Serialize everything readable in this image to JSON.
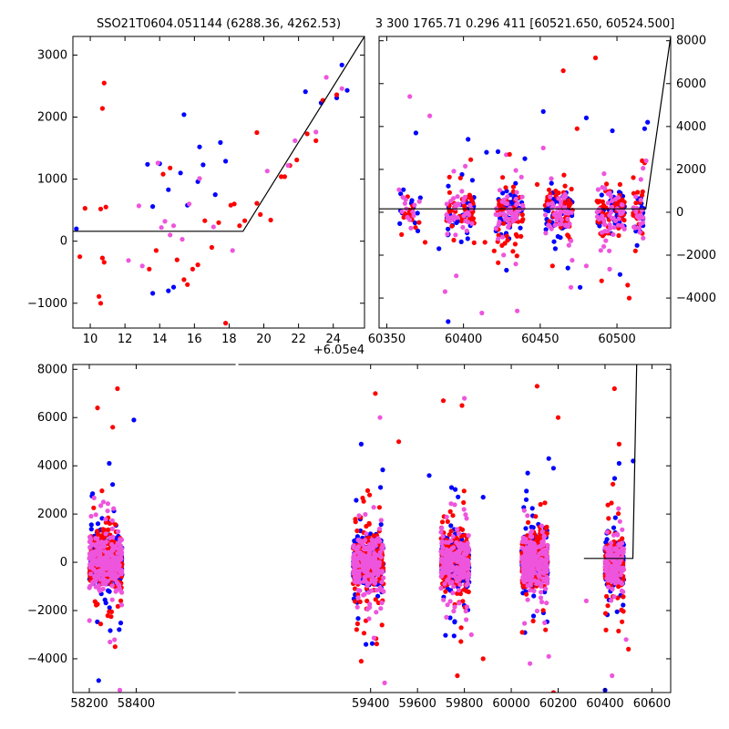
{
  "figure": {
    "title_left": "SSO21T0604.051144 (6288.36, 4262.53)",
    "title_right": "3 300 1765.71 0.296 411 [60521.650, 60524.500]",
    "offset_label": "+6.05e4"
  },
  "colors": {
    "blue": "#0000ff",
    "red": "#ff0000",
    "pink": "#ee55dd",
    "line": "#000000"
  },
  "chart_data": [
    {
      "id": "zoom",
      "type": "scatter",
      "xlim": [
        9,
        25.8
      ],
      "ylim": [
        -1400,
        3300
      ],
      "xticks": [
        10,
        12,
        14,
        16,
        18,
        20,
        22,
        24
      ],
      "yticks": [
        -1000,
        0,
        1000,
        2000,
        3000
      ],
      "model_line": [
        [
          9,
          160
        ],
        [
          18.8,
          160
        ],
        [
          25.8,
          3300
        ]
      ],
      "blue": [
        [
          9.2,
          200
        ],
        [
          13.3,
          1240
        ],
        [
          13.6,
          -840
        ],
        [
          14.0,
          1250
        ],
        [
          14.5,
          -800
        ],
        [
          14.8,
          -740
        ],
        [
          14.5,
          830
        ],
        [
          15.2,
          1100
        ],
        [
          15.4,
          2040
        ],
        [
          15.6,
          580
        ],
        [
          16.2,
          960
        ],
        [
          16.5,
          1230
        ],
        [
          17.2,
          750
        ],
        [
          17.5,
          1590
        ],
        [
          17.8,
          1290
        ],
        [
          22.4,
          2410
        ],
        [
          23.3,
          2230
        ],
        [
          24.5,
          2840
        ],
        [
          24.8,
          2430
        ],
        [
          24.2,
          2310
        ],
        [
          13.6,
          560
        ],
        [
          16.3,
          1520
        ]
      ],
      "red": [
        [
          9.4,
          -250
        ],
        [
          9.7,
          530
        ],
        [
          10.6,
          520
        ],
        [
          10.7,
          2140
        ],
        [
          10.8,
          2550
        ],
        [
          10.6,
          -1000
        ],
        [
          10.5,
          -890
        ],
        [
          10.8,
          -340
        ],
        [
          10.7,
          -270
        ],
        [
          10.9,
          550
        ],
        [
          13.4,
          -450
        ],
        [
          13.8,
          -150
        ],
        [
          14.2,
          1080
        ],
        [
          14.6,
          1180
        ],
        [
          15.0,
          -300
        ],
        [
          15.4,
          -620
        ],
        [
          15.6,
          -700
        ],
        [
          15.9,
          -450
        ],
        [
          16.2,
          -380
        ],
        [
          16.6,
          330
        ],
        [
          17.0,
          -100
        ],
        [
          17.4,
          300
        ],
        [
          17.8,
          -1320
        ],
        [
          18.1,
          580
        ],
        [
          18.6,
          250
        ],
        [
          18.9,
          330
        ],
        [
          19.6,
          1750
        ],
        [
          19.6,
          610
        ],
        [
          19.8,
          430
        ],
        [
          20.4,
          340
        ],
        [
          21.0,
          1040
        ],
        [
          21.2,
          1040
        ],
        [
          21.5,
          1220
        ],
        [
          21.9,
          1310
        ],
        [
          22.5,
          1730
        ],
        [
          23.0,
          1620
        ],
        [
          23.4,
          2270
        ],
        [
          24.2,
          2360
        ],
        [
          18.3,
          600
        ]
      ],
      "pink": [
        [
          12.2,
          -310
        ],
        [
          12.8,
          570
        ],
        [
          13.0,
          -400
        ],
        [
          13.9,
          1260
        ],
        [
          14.1,
          220
        ],
        [
          14.3,
          320
        ],
        [
          14.6,
          100
        ],
        [
          14.8,
          250
        ],
        [
          15.3,
          30
        ],
        [
          15.7,
          600
        ],
        [
          16.3,
          1010
        ],
        [
          17.1,
          230
        ],
        [
          18.2,
          -150
        ],
        [
          20.2,
          1130
        ],
        [
          21.4,
          1220
        ],
        [
          21.8,
          1620
        ],
        [
          23.0,
          1760
        ],
        [
          23.6,
          2640
        ],
        [
          24.5,
          2460
        ]
      ]
    },
    {
      "id": "recent",
      "type": "scatter",
      "xlim": [
        60345,
        60535
      ],
      "ylim": [
        -5400,
        8200
      ],
      "xticks": [
        60350,
        60400,
        60450,
        60500
      ],
      "yticks": [
        -4000,
        -2000,
        0,
        2000,
        4000,
        6000,
        8000
      ],
      "model_line": [
        [
          60345,
          160
        ],
        [
          60518.8,
          160
        ],
        [
          60535,
          8200
        ]
      ],
      "clusters": [
        {
          "center": 60365,
          "span": 14,
          "count": 40
        },
        {
          "center": 60398,
          "span": 18,
          "count": 120
        },
        {
          "center": 60430,
          "span": 18,
          "count": 150
        },
        {
          "center": 60462,
          "span": 18,
          "count": 150
        },
        {
          "center": 60496,
          "span": 18,
          "count": 160
        },
        {
          "center": 60514,
          "span": 7,
          "count": 60
        }
      ],
      "outliers": {
        "blue": [
          [
            60369,
            3700
          ],
          [
            60384,
            -1700
          ],
          [
            60390,
            -5100
          ],
          [
            60403,
            3400
          ],
          [
            60415,
            2800
          ],
          [
            60428,
            -2700
          ],
          [
            60440,
            2500
          ],
          [
            60452,
            4700
          ],
          [
            60468,
            -2600
          ],
          [
            60476,
            -3500
          ],
          [
            60480,
            4400
          ],
          [
            60497,
            3800
          ],
          [
            60502,
            -2900
          ],
          [
            60520,
            4200
          ],
          [
            60518,
            3900
          ]
        ],
        "red": [
          [
            60375,
            -1400
          ],
          [
            60398,
            1600
          ],
          [
            60414,
            -1400
          ],
          [
            60420,
            -1800
          ],
          [
            60430,
            2700
          ],
          [
            60448,
            1300
          ],
          [
            60458,
            -2500
          ],
          [
            60465,
            6600
          ],
          [
            60474,
            3900
          ],
          [
            60486,
            7200
          ],
          [
            60490,
            -3200
          ],
          [
            60502,
            1300
          ],
          [
            60507,
            -3400
          ],
          [
            60508,
            -4000
          ],
          [
            60512,
            -1800
          ],
          [
            60518,
            2300
          ]
        ],
        "pink": [
          [
            60365,
            5400
          ],
          [
            60378,
            4500
          ],
          [
            60388,
            -3700
          ],
          [
            60412,
            -4700
          ],
          [
            60435,
            -4600
          ],
          [
            60452,
            3000
          ],
          [
            60470,
            -3500
          ],
          [
            60480,
            -2500
          ],
          [
            60495,
            -1800
          ],
          [
            60519,
            2400
          ]
        ]
      }
    },
    {
      "id": "full",
      "type": "scatter",
      "xlim": [
        58130,
        60680
      ],
      "ylim": [
        -5400,
        8200
      ],
      "xticks": [
        58200,
        58400,
        59400,
        59600,
        59800,
        60000,
        60200,
        60400,
        60600
      ],
      "yticks": [
        -4000,
        -2000,
        0,
        2000,
        4000,
        6000,
        8000
      ],
      "axis_gap": [
        58480,
        59180
      ],
      "model_line": [
        [
          60310,
          160
        ],
        [
          60518.8,
          160
        ],
        [
          60535,
          8200
        ]
      ],
      "clusters": [
        {
          "center": 58270,
          "span": 140,
          "count": 700
        },
        {
          "center": 59390,
          "span": 130,
          "count": 650
        },
        {
          "center": 59760,
          "span": 120,
          "count": 650
        },
        {
          "center": 60100,
          "span": 110,
          "count": 650
        },
        {
          "center": 60440,
          "span": 80,
          "count": 380
        }
      ],
      "outliers": {
        "blue": [
          [
            58240,
            -4900
          ],
          [
            58285,
            4100
          ],
          [
            58390,
            5900
          ],
          [
            59360,
            4900
          ],
          [
            59380,
            -3400
          ],
          [
            59650,
            3600
          ],
          [
            59745,
            3100
          ],
          [
            59880,
            2700
          ],
          [
            60070,
            3700
          ],
          [
            60180,
            3900
          ],
          [
            60160,
            4300
          ],
          [
            60400,
            -5300
          ],
          [
            60460,
            4100
          ],
          [
            60520,
            4200
          ]
        ],
        "red": [
          [
            58235,
            6400
          ],
          [
            58300,
            5600
          ],
          [
            58320,
            7200
          ],
          [
            58310,
            -3500
          ],
          [
            59420,
            7000
          ],
          [
            59360,
            -4100
          ],
          [
            59520,
            5000
          ],
          [
            59710,
            6700
          ],
          [
            59790,
            6500
          ],
          [
            59770,
            -4700
          ],
          [
            59880,
            -4000
          ],
          [
            60110,
            7300
          ],
          [
            60200,
            6000
          ],
          [
            60180,
            -5400
          ],
          [
            60440,
            7200
          ],
          [
            60460,
            4900
          ],
          [
            60500,
            -3600
          ]
        ],
        "pink": [
          [
            58330,
            -5300
          ],
          [
            59440,
            6000
          ],
          [
            59460,
            -5000
          ],
          [
            59800,
            6800
          ],
          [
            59830,
            -3000
          ],
          [
            60080,
            -4200
          ],
          [
            60160,
            -3900
          ],
          [
            60320,
            -1600
          ],
          [
            60430,
            -4700
          ],
          [
            60490,
            -3200
          ]
        ]
      }
    }
  ]
}
